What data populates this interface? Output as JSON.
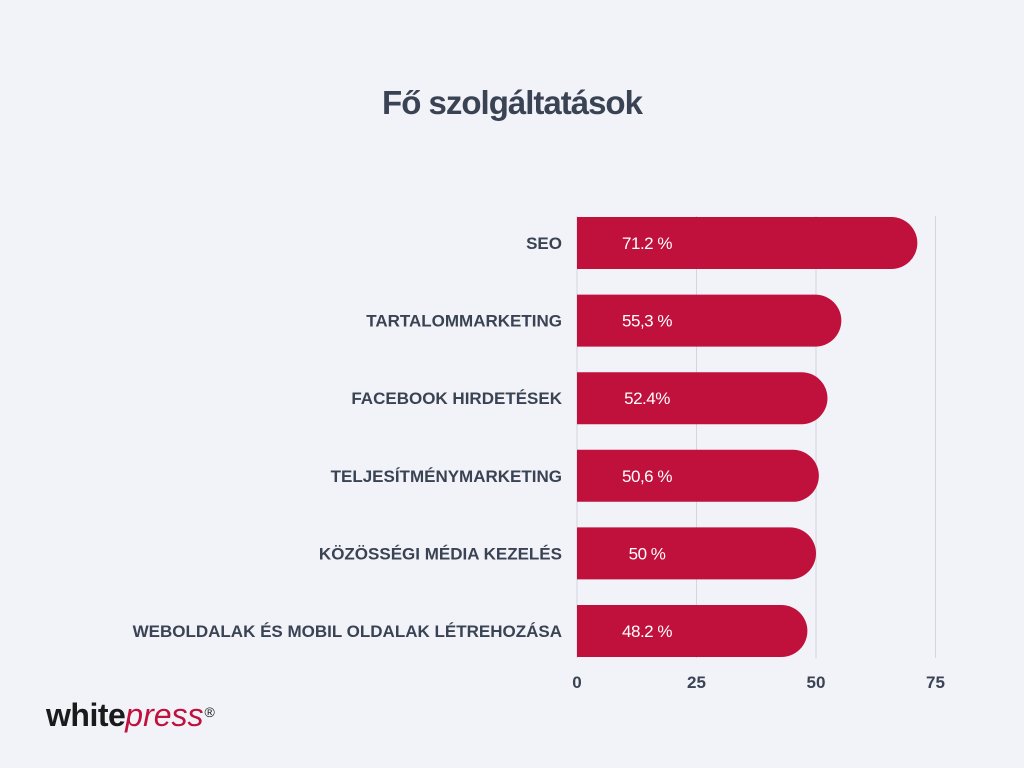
{
  "title": "Fő szolgáltatások",
  "logo": {
    "part1": "white",
    "part2": "press",
    "mark": "®"
  },
  "colors": {
    "background": "#f2f3f8",
    "bar": "#c0113d",
    "bar_label": "#ffffff",
    "text": "#3a4353",
    "gridline": "#d4d6de"
  },
  "chart_data": {
    "type": "bar",
    "orientation": "horizontal",
    "title": "Fő szolgáltatások",
    "categories": [
      "SEO",
      "TARTALOMMARKETING",
      "FACEBOOK HIRDETÉSEK",
      "TELJESÍTMÉNYMARKETING",
      "KÖZÖSSÉGI MÉDIA KEZELÉS",
      "WEBOLDALAK ÉS MOBIL OLDALAK LÉTREHOZÁSA"
    ],
    "values": [
      71.2,
      55.3,
      52.4,
      50.6,
      50,
      48.2
    ],
    "data_labels": [
      "71.2 %",
      "55,3 %",
      "52.4%",
      "50,6 %",
      "50 %",
      "48.2  %"
    ],
    "xlim": [
      0,
      75
    ],
    "xticks": [
      "0",
      "25",
      "50",
      "75"
    ],
    "xtick_values": [
      0,
      25,
      50,
      75
    ],
    "grid": true,
    "legend": "none"
  }
}
